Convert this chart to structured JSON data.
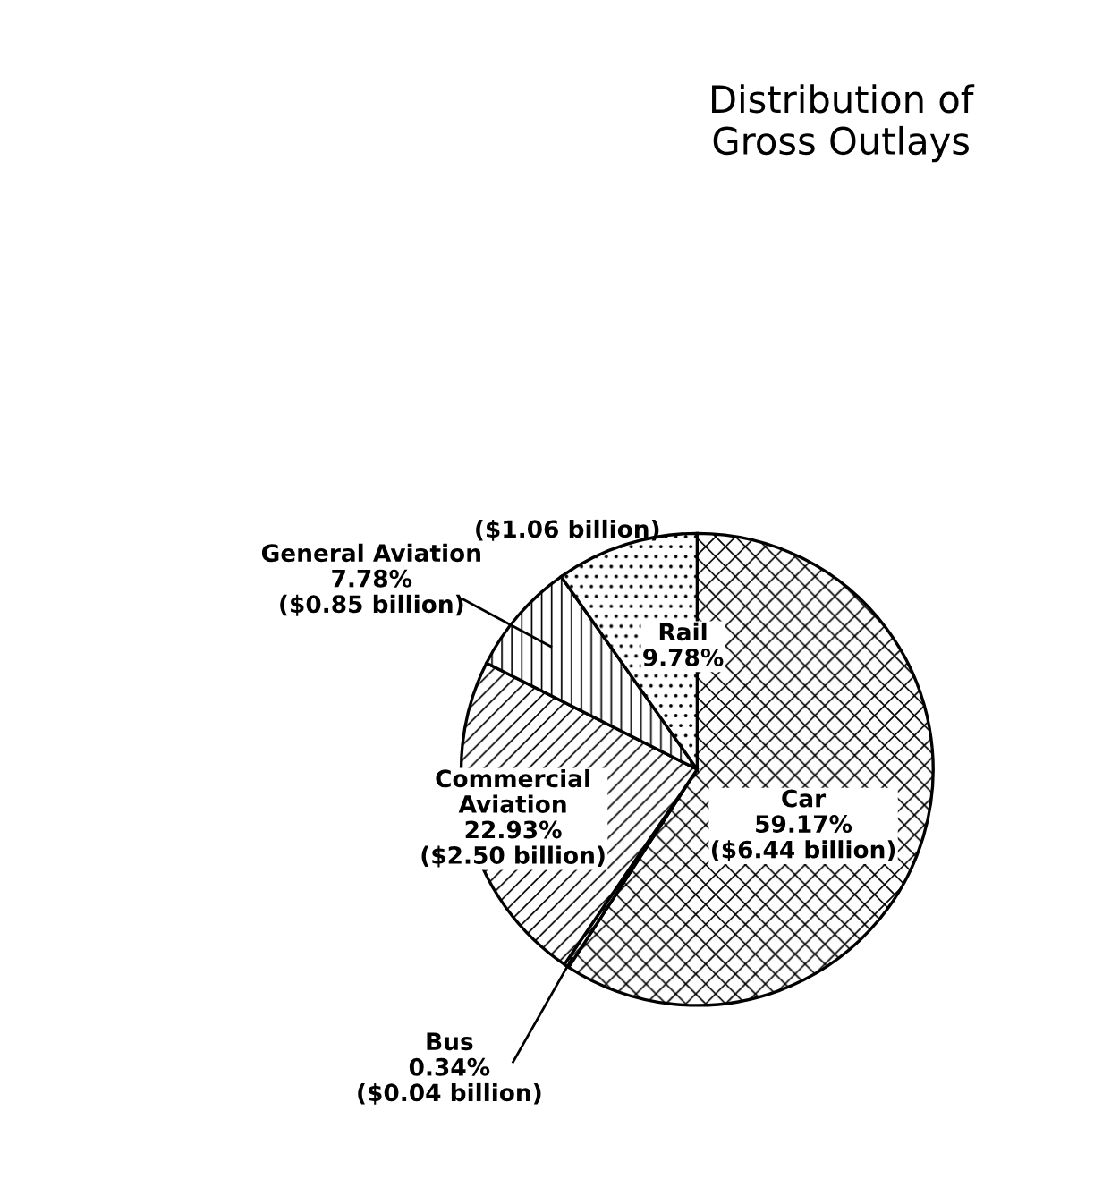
{
  "chart_data": {
    "type": "pie",
    "title": "Distribution of\nGross Outlays",
    "categories": [
      "Car",
      "Bus",
      "Commercial\nAviation",
      "General Aviation",
      "Rail"
    ],
    "values": [
      59.17,
      0.34,
      22.93,
      7.78,
      9.78
    ],
    "colors": [
      "#000000",
      "#000000",
      "#000000",
      "#000000",
      "#000000"
    ],
    "value_labels": [
      "59.17%",
      "0.34%",
      "22.93%",
      "7.78%",
      "9.78%"
    ],
    "annotations": [
      "($6.44 billion)",
      "($0.04 billion)",
      "($2.50 billion)",
      "($0.85 billion)",
      "($1.06 billion)"
    ],
    "legend": false
  }
}
